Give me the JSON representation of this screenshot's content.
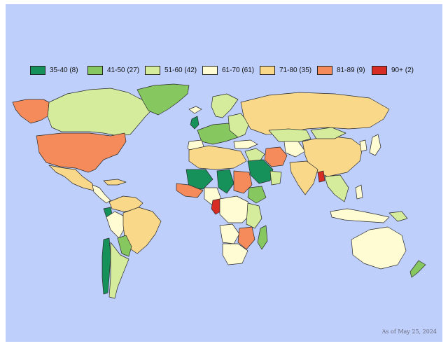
{
  "legend": {
    "items": [
      {
        "label": "35-40 (8)",
        "color": "#16915a"
      },
      {
        "label": "41-50 (27)",
        "color": "#86c75f"
      },
      {
        "label": "51-60 (42)",
        "color": "#d4ec9c"
      },
      {
        "label": "61-70 (61)",
        "color": "#fffbd3"
      },
      {
        "label": "71-80 (35)",
        "color": "#f9d88a"
      },
      {
        "label": "81-89 (9)",
        "color": "#f58b5a"
      },
      {
        "label": "90+ (2)",
        "color": "#d72c23"
      }
    ]
  },
  "colors": {
    "ocean": "#bfcffc",
    "border": "#2a2a2a"
  },
  "footnote": "As of May 25, 2024"
}
